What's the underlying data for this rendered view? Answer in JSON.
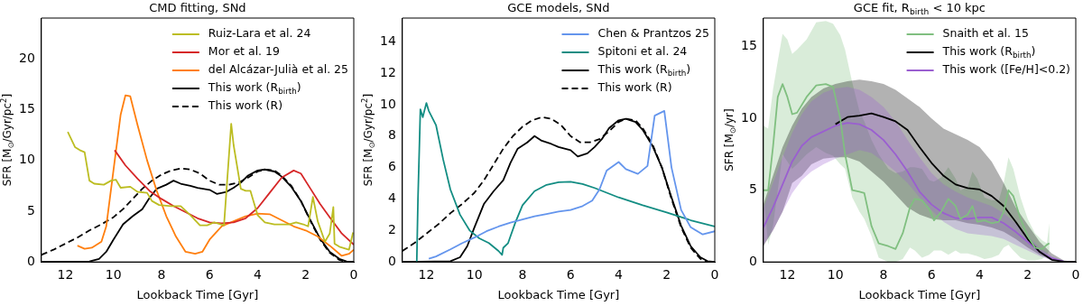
{
  "chart_data": [
    {
      "type": "line",
      "title": "CMD fitting, SNd",
      "xlabel": "Lookback Time [Gyr]",
      "ylabel": "SFR [M$_{⊙}$/Gyr/pc$^{2}$]",
      "xlim": [
        13,
        0
      ],
      "xticks": [
        12,
        10,
        8,
        6,
        4,
        2,
        0
      ],
      "ylim": [
        0,
        24
      ],
      "yticks": [
        0,
        5,
        10,
        15,
        20
      ],
      "legend": "top right",
      "grid": false,
      "marker": "none",
      "series": [
        {
          "name": "Ruiz-Lara et al. 24",
          "color": "#bcbd22",
          "type": "line",
          "x": [
            11.9,
            11.6,
            11.4,
            11.2,
            11.0,
            10.8,
            10.4,
            10.1,
            9.9,
            9.7,
            9.3,
            9.0,
            8.6,
            8.4,
            8.1,
            7.6,
            7.2,
            6.8,
            6.4,
            6.1,
            5.8,
            5.4,
            5.1,
            5.0,
            4.7,
            4.5,
            4.3,
            4.0,
            3.7,
            3.3,
            2.7,
            2.4,
            2.1,
            1.9,
            1.7,
            1.5,
            1.2,
            1.0,
            0.85,
            0.8,
            0.6,
            0.2,
            0.03
          ],
          "values": [
            12.8,
            11.3,
            11.0,
            10.8,
            8.0,
            7.7,
            7.6,
            8.0,
            8.1,
            7.3,
            7.4,
            6.9,
            6.8,
            6.0,
            5.6,
            5.5,
            5.5,
            4.6,
            3.6,
            3.6,
            3.9,
            3.6,
            13.6,
            11.5,
            7.2,
            7.0,
            7.0,
            4.6,
            3.9,
            3.7,
            3.7,
            3.9,
            3.7,
            3.5,
            6.4,
            4.0,
            2.0,
            2.8,
            5.4,
            1.8,
            1.5,
            1.2,
            2.9
          ]
        },
        {
          "name": "Mor et al. 19",
          "color": "#d62728",
          "type": "line",
          "x": [
            9.95,
            9.5,
            9,
            8.5,
            8,
            7.5,
            7,
            6.5,
            6,
            5.5,
            5,
            4.5,
            4,
            3.5,
            3,
            2.5,
            2.2,
            1.8,
            1.4,
            1.0,
            0.5,
            0
          ],
          "values": [
            11.0,
            9.5,
            8.2,
            7.0,
            6.2,
            5.5,
            4.9,
            4.3,
            3.9,
            3.8,
            3.9,
            4.3,
            5.3,
            6.8,
            8.3,
            9.0,
            8.7,
            7.2,
            5.7,
            4.4,
            2.8,
            1.7
          ]
        },
        {
          "name": "del Alcázar-Julià et al. 25",
          "color": "#ff7f0e",
          "type": "line",
          "x": [
            11.5,
            11.2,
            10.9,
            10.5,
            10.3,
            10.0,
            9.7,
            9.5,
            9.3,
            9.0,
            8.6,
            8.2,
            7.8,
            7.4,
            7.0,
            6.6,
            6.3,
            6.0,
            5.5,
            5.0,
            4.5,
            4.0,
            3.5,
            3.0,
            2.5,
            2.0,
            1.5,
            1.0,
            0.5,
            0.2,
            0
          ],
          "values": [
            1.6,
            1.3,
            1.4,
            2.0,
            3.5,
            9.0,
            14.5,
            16.4,
            16.3,
            13.5,
            10.0,
            7.0,
            4.5,
            2.5,
            1.0,
            0.8,
            1.0,
            2.2,
            3.5,
            4.0,
            4.5,
            4.75,
            4.7,
            4.1,
            3.5,
            3.1,
            2.5,
            1.6,
            0.6,
            0.8,
            1.2
          ]
        },
        {
          "name": "This work (R$_{birth}$)",
          "color": "#000000",
          "type": "line",
          "line_style": "solid",
          "x": [
            13,
            11,
            10.6,
            10.3,
            10,
            9.6,
            9.2,
            8.8,
            8.5,
            8.2,
            7.8,
            7.5,
            7.2,
            6.8,
            6.5,
            6.0,
            5.7,
            5.3,
            5.0,
            4.7,
            4.4,
            4.0,
            3.7,
            3.3,
            3.0,
            2.6,
            2.2,
            1.8,
            1.4,
            1.0,
            0.6,
            0.3,
            0
          ],
          "values": [
            0,
            0.05,
            0.3,
            1.0,
            2.2,
            3.7,
            4.5,
            5.2,
            6.3,
            7.2,
            7.6,
            8.0,
            7.7,
            7.5,
            7.3,
            7.1,
            6.7,
            6.9,
            7.3,
            7.8,
            8.5,
            9.0,
            9.1,
            8.9,
            8.4,
            7.4,
            6.0,
            4.1,
            2.3,
            1.0,
            0.3,
            0.05,
            0
          ]
        },
        {
          "name": "This work (R)",
          "color": "#000000",
          "type": "line",
          "line_style": "dashed",
          "x": [
            13,
            12.5,
            12,
            11.5,
            11,
            10.5,
            10,
            9.6,
            9.2,
            8.8,
            8.4,
            8.0,
            7.6,
            7.2,
            6.8,
            6.4,
            6.0,
            5.6,
            5.2,
            4.8,
            4.4,
            4.0,
            3.7,
            3.3,
            3.0,
            2.6,
            2.2,
            1.8,
            1.4,
            1.0,
            0.6,
            0.3,
            0
          ],
          "values": [
            0.7,
            1.2,
            1.8,
            2.4,
            3.1,
            3.7,
            4.4,
            5.2,
            6.2,
            7.2,
            8.0,
            8.6,
            9.0,
            9.2,
            9.1,
            8.7,
            8.0,
            7.6,
            7.6,
            7.8,
            8.3,
            8.9,
            9.1,
            9.0,
            8.5,
            7.5,
            6.0,
            4.0,
            2.2,
            0.9,
            0.2,
            0.0,
            0
          ]
        }
      ]
    },
    {
      "type": "line",
      "title": "GCE models, SNd",
      "xlabel": "Lookback Time [Gyr]",
      "ylabel": "SFR [M$_{⊙}$/Gyr/pc$^{2}$]",
      "xlim": [
        13,
        0
      ],
      "xticks": [
        12,
        10,
        8,
        6,
        4,
        2,
        0
      ],
      "ylim": [
        0,
        15.5
      ],
      "yticks": [
        0,
        2,
        4,
        6,
        8,
        10,
        12,
        14
      ],
      "legend": "top right",
      "grid": false,
      "marker": "none",
      "series": [
        {
          "name": "Chen & Prantzos 25",
          "color": "#6495ed",
          "type": "line",
          "x": [
            11.9,
            11.6,
            11,
            10.5,
            10,
            9.5,
            9,
            8.5,
            8,
            7.5,
            7,
            6.5,
            6,
            5.5,
            5.1,
            4.8,
            4.5,
            4.0,
            3.7,
            3.2,
            2.8,
            2.5,
            2.1,
            1.8,
            1.4,
            1.0,
            0.5,
            0
          ],
          "values": [
            0.2,
            0.35,
            0.8,
            1.2,
            1.55,
            1.95,
            2.25,
            2.5,
            2.7,
            2.9,
            3.05,
            3.2,
            3.3,
            3.55,
            3.9,
            4.6,
            5.8,
            6.35,
            5.9,
            5.6,
            6.1,
            9.3,
            9.6,
            6.0,
            3.3,
            2.2,
            1.75,
            1.95
          ]
        },
        {
          "name": "Spitoni et al. 24",
          "color": "#138d83",
          "type": "line",
          "x": [
            12.4,
            12.35,
            12.25,
            12.15,
            12.0,
            11.9,
            11.6,
            11.3,
            11,
            10.6,
            10.2,
            9.8,
            9.4,
            9.0,
            8.85,
            8.8,
            8.6,
            8.3,
            8.0,
            7.5,
            7.0,
            6.5,
            6.0,
            5.5,
            5.0,
            4.5,
            4.0,
            3.0,
            2.0,
            1.0,
            0
          ],
          "values": [
            0,
            4.0,
            9.7,
            9.2,
            10.1,
            9.6,
            8.7,
            6.5,
            4.6,
            3.0,
            2.0,
            1.5,
            1.2,
            0.7,
            0.45,
            0.9,
            1.2,
            2.5,
            3.6,
            4.5,
            4.9,
            5.07,
            5.1,
            4.95,
            4.7,
            4.4,
            4.1,
            3.6,
            3.15,
            2.65,
            2.25
          ]
        },
        {
          "name": "This work (R$_{birth}$)",
          "color": "#000000",
          "type": "line",
          "line_style": "solid",
          "x": [
            13,
            11,
            10.6,
            10.3,
            10,
            9.6,
            9.2,
            8.8,
            8.5,
            8.2,
            7.8,
            7.5,
            7.2,
            6.8,
            6.5,
            6.0,
            5.7,
            5.3,
            5.0,
            4.7,
            4.4,
            4.0,
            3.7,
            3.3,
            3.0,
            2.6,
            2.2,
            1.8,
            1.4,
            1.0,
            0.6,
            0.3,
            0
          ],
          "values": [
            0,
            0.05,
            0.3,
            1.0,
            2.2,
            3.7,
            4.5,
            5.2,
            6.3,
            7.2,
            7.6,
            8.0,
            7.7,
            7.5,
            7.3,
            7.1,
            6.7,
            6.9,
            7.3,
            7.8,
            8.5,
            9.0,
            9.1,
            8.9,
            8.4,
            7.4,
            6.0,
            4.1,
            2.3,
            1.0,
            0.3,
            0.05,
            0
          ]
        },
        {
          "name": "This work (R)",
          "color": "#000000",
          "type": "line",
          "line_style": "dashed",
          "x": [
            13,
            12.5,
            12,
            11.5,
            11,
            10.5,
            10,
            9.6,
            9.2,
            8.8,
            8.4,
            8.0,
            7.6,
            7.2,
            6.8,
            6.4,
            6.0,
            5.6,
            5.2,
            4.8,
            4.4,
            4.0,
            3.7,
            3.3,
            3.0,
            2.6,
            2.2,
            1.8,
            1.4,
            1.0,
            0.6,
            0.3,
            0
          ],
          "values": [
            0.7,
            1.2,
            1.8,
            2.4,
            3.1,
            3.7,
            4.4,
            5.2,
            6.2,
            7.2,
            8.0,
            8.6,
            9.0,
            9.2,
            9.1,
            8.7,
            8.0,
            7.6,
            7.6,
            7.8,
            8.3,
            8.9,
            9.1,
            9.0,
            8.5,
            7.5,
            6.0,
            4.0,
            2.2,
            0.9,
            0.2,
            0.0,
            0
          ]
        }
      ]
    },
    {
      "type": "line",
      "title": "GCE fit, R$_{birth}$ < 10 kpc",
      "xlabel": "Lookback Time [Gyr]",
      "ylabel": "SFR [M$_{⊙}$/yr]",
      "xlim": [
        13,
        0
      ],
      "xticks": [
        12,
        10,
        8,
        6,
        4,
        2,
        0
      ],
      "ylim": [
        0,
        17
      ],
      "yticks": [
        0,
        5,
        10,
        15
      ],
      "legend": "top right",
      "grid": false,
      "marker": "none",
      "series": [
        {
          "name": "Snaith et al. 15",
          "color": "#80bf80",
          "type": "line",
          "x": [
            13,
            12.8,
            12.6,
            12.4,
            12.2,
            12.0,
            11.8,
            11.6,
            11.2,
            10.8,
            10.4,
            10.1,
            9.8,
            9.6,
            9.3,
            9.0,
            8.8,
            8.5,
            8.2,
            7.8,
            7.5,
            7.2,
            6.9,
            6.7,
            6.4,
            6.1,
            5.9,
            5.6,
            5.3,
            5.0,
            4.8,
            4.5,
            4.3,
            4.1,
            3.8,
            3.5,
            3.2,
            3.0,
            2.8,
            2.6,
            2.3,
            2.0,
            1.7,
            1.4,
            1.2,
            1.1
          ],
          "values": [
            5.0,
            5.0,
            8,
            11.5,
            12.4,
            11.5,
            10.3,
            10.4,
            11.5,
            12.3,
            12.4,
            12.2,
            10.0,
            7.5,
            5.0,
            4.9,
            4.8,
            2.5,
            1.3,
            1.1,
            0.9,
            2.0,
            3.8,
            4.4,
            4.3,
            3.7,
            2.9,
            3.5,
            4.4,
            3.9,
            3.0,
            3.3,
            3.9,
            2.8,
            2.9,
            2.7,
            2.8,
            3.5,
            5.0,
            4.6,
            3.0,
            1.8,
            1.0,
            0.9,
            1.2,
            1.3
          ],
          "lower": [
            4.9,
            1.2,
            2.5,
            5.0,
            7.5,
            7.0,
            6.5,
            6.8,
            7.5,
            8.0,
            7.6,
            7.4,
            6.8,
            6.5,
            4.5,
            3.5,
            3.0,
            1.8,
            0.3,
            0.0,
            0.0,
            0.2,
            1.0,
            0.8,
            0.3,
            0.5,
            0.8,
            0.8,
            0.5,
            0.8,
            0.6,
            0.6,
            0.5,
            0.4,
            0.2,
            0.3,
            0.5,
            1.0,
            1.2,
            0.8,
            0.3,
            0.1,
            0.1,
            0.2,
            0.5,
            0.8
          ],
          "upper": [
            9.5,
            9.3,
            12,
            14,
            15.9,
            15.5,
            14.5,
            14.8,
            15.5,
            16.7,
            16.8,
            16.6,
            15.8,
            14.8,
            12.5,
            10.5,
            9.8,
            8.5,
            7.5,
            6.5,
            6.2,
            6.3,
            6.6,
            6.6,
            6.5,
            5.7,
            5.6,
            5.9,
            6.6,
            5.8,
            5.0,
            5.2,
            6.3,
            5.8,
            4.5,
            4.3,
            4.3,
            5.5,
            7.3,
            6.5,
            4.5,
            3.0,
            2.0,
            1.5,
            1.3,
            2.7
          ]
        },
        {
          "name": "This work (R$_{birth}$)",
          "color": "#000000",
          "type": "line",
          "line_style": "solid",
          "x": [
            13,
            12.6,
            12.2,
            11.8,
            11.4,
            11.0,
            10.5,
            10.0,
            9.5,
            9.0,
            8.5,
            8.0,
            7.5,
            7.0,
            6.5,
            6.0,
            5.5,
            5.0,
            4.5,
            4.0,
            3.5,
            3.0,
            2.5,
            2.0,
            1.5,
            1.0,
            0.5,
            0
          ],
          "values": [
            null,
            null,
            null,
            null,
            null,
            null,
            null,
            9.6,
            10.1,
            10.2,
            10.35,
            10.1,
            9.8,
            9.2,
            8.0,
            6.9,
            6.0,
            5.4,
            5.15,
            5.05,
            4.6,
            3.9,
            2.8,
            1.6,
            0.7,
            0.15,
            0.02,
            0
          ],
          "lower": [
            1.1,
            2.2,
            3.5,
            5.5,
            6.0,
            6.8,
            7.2,
            7.3,
            7.3,
            7.0,
            6.3,
            5.6,
            4.7,
            3.8,
            3.3,
            3.0,
            2.9,
            2.9,
            2.7,
            2.6,
            2.4,
            2.1,
            1.6,
            1.0,
            0.5,
            0.15,
            0.02,
            0
          ],
          "upper": [
            4.0,
            6.0,
            8.0,
            9.5,
            10.7,
            11.5,
            12.1,
            12.4,
            12.6,
            12.7,
            12.6,
            12.4,
            12.0,
            11.4,
            10.8,
            10.0,
            9.3,
            8.9,
            8.5,
            8.0,
            7.0,
            5.5,
            3.8,
            2.6,
            1.4,
            0.6,
            0.1,
            0
          ]
        },
        {
          "name": "This work ([Fe/H]<0.2)",
          "color": "#9a5fd0",
          "type": "line",
          "line_style": "solid",
          "x": [
            13,
            12.6,
            12.2,
            11.8,
            11.4,
            11.0,
            10.5,
            10.0,
            9.5,
            9.0,
            8.5,
            8.0,
            7.5,
            7.0,
            6.5,
            6.0,
            5.5,
            5.0,
            4.5,
            4.0,
            3.5,
            3.0,
            2.5,
            2.0,
            1.5,
            1.0,
            0.5,
            0
          ],
          "values": [
            2.4,
            3.8,
            5.4,
            7.0,
            8.1,
            8.7,
            9.1,
            9.5,
            9.7,
            9.6,
            9.2,
            8.5,
            7.5,
            6.3,
            4.9,
            4.0,
            3.4,
            3.05,
            3.0,
            3.1,
            3.1,
            2.7,
            2.1,
            1.4,
            0.7,
            0.25,
            0.03,
            0
          ],
          "lower": [
            1.2,
            2.2,
            3.5,
            4.8,
            5.7,
            6.3,
            6.8,
            7.2,
            7.5,
            7.8,
            7.6,
            7.0,
            6.3,
            5.5,
            4.5,
            3.6,
            2.8,
            2.3,
            2.0,
            1.9,
            1.8,
            1.6,
            1.2,
            0.8,
            0.4,
            0.1,
            0.01,
            0
          ],
          "upper": [
            3.7,
            5.5,
            7.3,
            9.0,
            10.3,
            11.2,
            11.8,
            12.1,
            12.2,
            12.0,
            11.5,
            10.8,
            9.8,
            8.5,
            7.3,
            6.2,
            5.4,
            4.9,
            4.5,
            4.2,
            3.9,
            3.4,
            2.7,
            1.8,
            1.0,
            0.4,
            0.05,
            0
          ]
        }
      ]
    }
  ]
}
